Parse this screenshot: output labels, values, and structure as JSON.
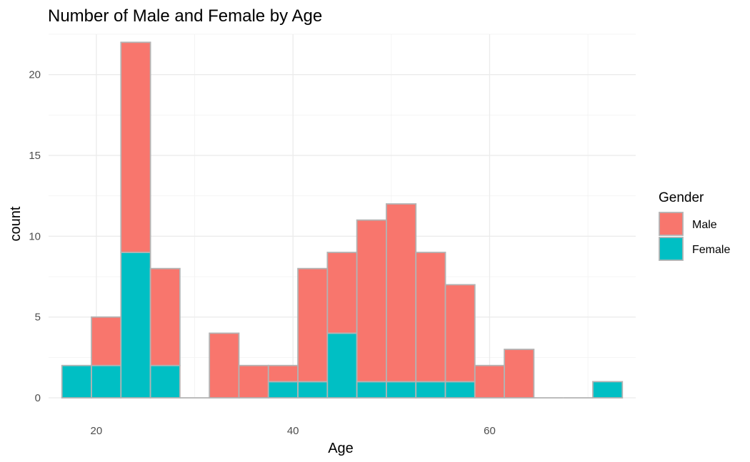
{
  "chart_data": {
    "type": "bar",
    "subtype": "stacked-histogram",
    "title": "Number of Male and Female by Age",
    "xlabel": "Age",
    "ylabel": "count",
    "xlim": [
      15.14,
      74.86
    ],
    "ylim": [
      0,
      22.5
    ],
    "x_ticks": [
      20,
      40,
      60
    ],
    "y_ticks": [
      0,
      5,
      10,
      15,
      20
    ],
    "grid": true,
    "legend": {
      "title": "Gender",
      "position": "right"
    },
    "bin_width": 3,
    "bin_centers": [
      18,
      21,
      24,
      27,
      30,
      33,
      36,
      39,
      42,
      45,
      48,
      51,
      54,
      57,
      60,
      63,
      66,
      69,
      72
    ],
    "series": [
      {
        "name": "Male",
        "color": "#F8766D",
        "values": [
          0,
          3,
          13,
          6,
          0,
          4,
          2,
          1,
          7,
          5,
          10,
          11,
          8,
          6,
          2,
          3,
          0,
          0,
          0
        ]
      },
      {
        "name": "Female",
        "color": "#00BFC4",
        "values": [
          2,
          2,
          9,
          2,
          0,
          0,
          0,
          1,
          1,
          4,
          1,
          1,
          1,
          1,
          0,
          0,
          0,
          0,
          1
        ]
      }
    ]
  }
}
